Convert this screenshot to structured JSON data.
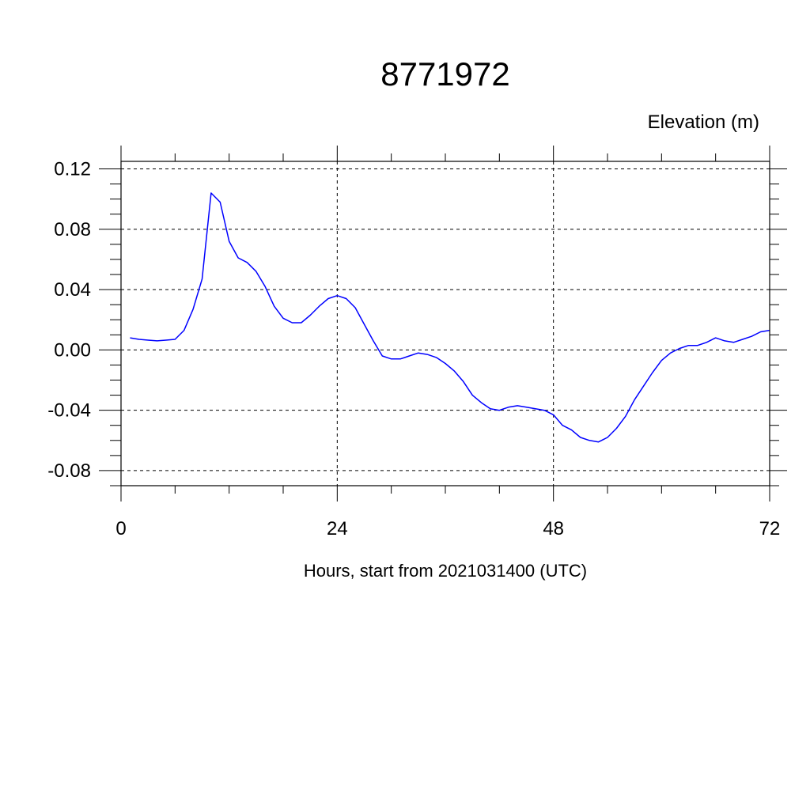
{
  "chart_data": {
    "type": "line",
    "title": "8771972",
    "ylabel": "Elevation (m)",
    "xlabel": "Hours, start from 2021031400 (UTC)",
    "xlim": [
      0,
      72
    ],
    "ylim": [
      -0.09,
      0.125
    ],
    "x_ticks": [
      0,
      24,
      48,
      72
    ],
    "x_tick_labels": [
      "0",
      "24",
      "48",
      "72"
    ],
    "y_ticks": [
      0.12,
      0.08,
      0.04,
      0.0,
      -0.04,
      -0.08
    ],
    "y_tick_labels": [
      "0.12",
      "0.08",
      "0.04",
      "0.00",
      "-0.04",
      "-0.08"
    ],
    "grid": true,
    "line_color": "#0000ff",
    "series": [
      {
        "x": [
          1,
          2,
          3,
          4,
          5,
          6,
          7,
          8,
          9,
          10,
          11,
          12,
          13,
          14,
          15,
          16,
          17,
          18,
          19,
          20,
          21,
          22,
          23,
          24,
          25,
          26,
          27,
          28,
          29,
          30,
          31,
          32,
          33,
          34,
          35,
          36,
          37,
          38,
          39,
          40,
          41,
          42,
          43,
          44,
          45,
          46,
          47,
          48,
          49,
          50,
          51,
          52,
          53,
          54,
          55,
          56,
          57,
          58,
          59,
          60,
          61,
          62,
          63,
          64,
          65,
          66,
          67,
          68,
          69,
          70,
          71,
          72
        ],
        "values": [
          0.008,
          0.007,
          0.0065,
          0.006,
          0.0065,
          0.007,
          0.013,
          0.027,
          0.047,
          0.104,
          0.098,
          0.072,
          0.061,
          0.058,
          0.052,
          0.042,
          0.029,
          0.021,
          0.018,
          0.018,
          0.023,
          0.029,
          0.034,
          0.036,
          0.034,
          0.028,
          0.017,
          0.006,
          -0.004,
          -0.006,
          -0.006,
          -0.004,
          -0.002,
          -0.003,
          -0.005,
          -0.009,
          -0.014,
          -0.021,
          -0.03,
          -0.035,
          -0.039,
          -0.04,
          -0.038,
          -0.037,
          -0.038,
          -0.039,
          -0.04,
          -0.043,
          -0.05,
          -0.053,
          -0.058,
          -0.06,
          -0.061,
          -0.058,
          -0.052,
          -0.044,
          -0.033,
          -0.024,
          -0.015,
          -0.007,
          -0.002,
          0.001,
          0.003,
          0.003,
          0.005,
          0.008,
          0.006,
          0.005,
          0.007,
          0.009,
          0.012,
          0.013
        ]
      }
    ]
  }
}
